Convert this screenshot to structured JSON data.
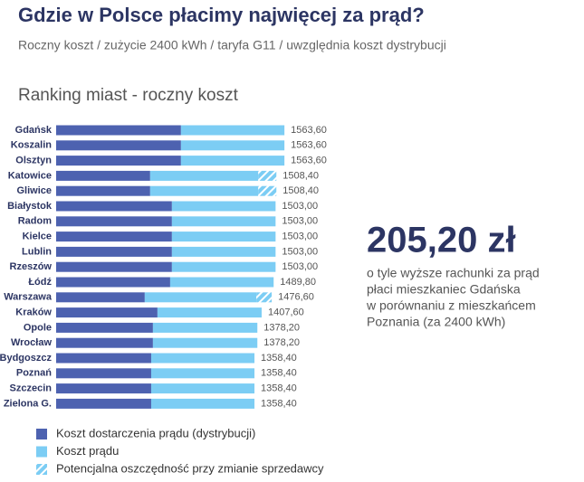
{
  "chart_data": {
    "type": "stacked-bar-horizontal",
    "title": "Gdzie w Polsce płacimy najwięcej za prąd?",
    "subtitle": "Roczny koszt / zużycie 2400 kWh / taryfa G11 / uwzględnia koszt dystrybucji",
    "chart_title": "Ranking miast - roczny koszt",
    "categories": [
      "Gdańsk",
      "Koszalin",
      "Olsztyn",
      "Katowice",
      "Gliwice",
      "Białystok",
      "Radom",
      "Kielce",
      "Lublin",
      "Rzeszów",
      "Łódź",
      "Warszawa",
      "Kraków",
      "Opole",
      "Wrocław",
      "Bydgoszcz",
      "Poznań",
      "Szczecin",
      "Zielona G."
    ],
    "series": [
      {
        "name": "Koszt dostarczenia prądu (dystrybucji)",
        "color": "#4d62b0",
        "values": [
          855,
          855,
          855,
          644,
          644,
          793,
          793,
          793,
          793,
          793,
          781,
          607,
          694,
          663,
          663,
          651,
          651,
          651,
          651
        ]
      },
      {
        "name": "Koszt prądu",
        "color": "#7ccdf4",
        "values": [
          708.6,
          708.6,
          708.6,
          740.4,
          740.4,
          710,
          710,
          710,
          710,
          710,
          708.8,
          764.6,
          713.6,
          715.2,
          715.2,
          707.4,
          707.4,
          707.4,
          707.4
        ]
      },
      {
        "name": "Potencjalna oszczędność przy zmianie sprzedawcy",
        "color": "#7ccdf4",
        "hatch": true,
        "values": [
          null,
          null,
          null,
          124,
          124,
          null,
          null,
          null,
          null,
          null,
          null,
          105,
          null,
          null,
          null,
          null,
          null,
          null,
          null
        ]
      }
    ],
    "totals": [
      1563.6,
      1563.6,
      1563.6,
      1508.4,
      1508.4,
      1503,
      1503,
      1503,
      1503,
      1503,
      1489.8,
      1476.6,
      1407.6,
      1378.2,
      1378.2,
      1358.4,
      1358.4,
      1358.4,
      1358.4
    ],
    "total_labels": [
      "1563,60",
      "1563,60",
      "1563,60",
      "1508,40",
      "1508,40",
      "1503,00",
      "1503,00",
      "1503,00",
      "1503,00",
      "1503,00",
      "1489,80",
      "1476,60",
      "1407,60",
      "1378,20",
      "1378,20",
      "1358,40",
      "1358,40",
      "1358,40",
      "1358,40"
    ],
    "xlim": [
      0,
      1600
    ],
    "annotation": {
      "value": "205,20 zł",
      "lines": [
        "o tyle wyższe rachunki za prąd",
        "płaci mieszkaniec Gdańska",
        "w porównaniu z mieszkańcem",
        "Poznania (za 2400 kWh)"
      ]
    }
  }
}
